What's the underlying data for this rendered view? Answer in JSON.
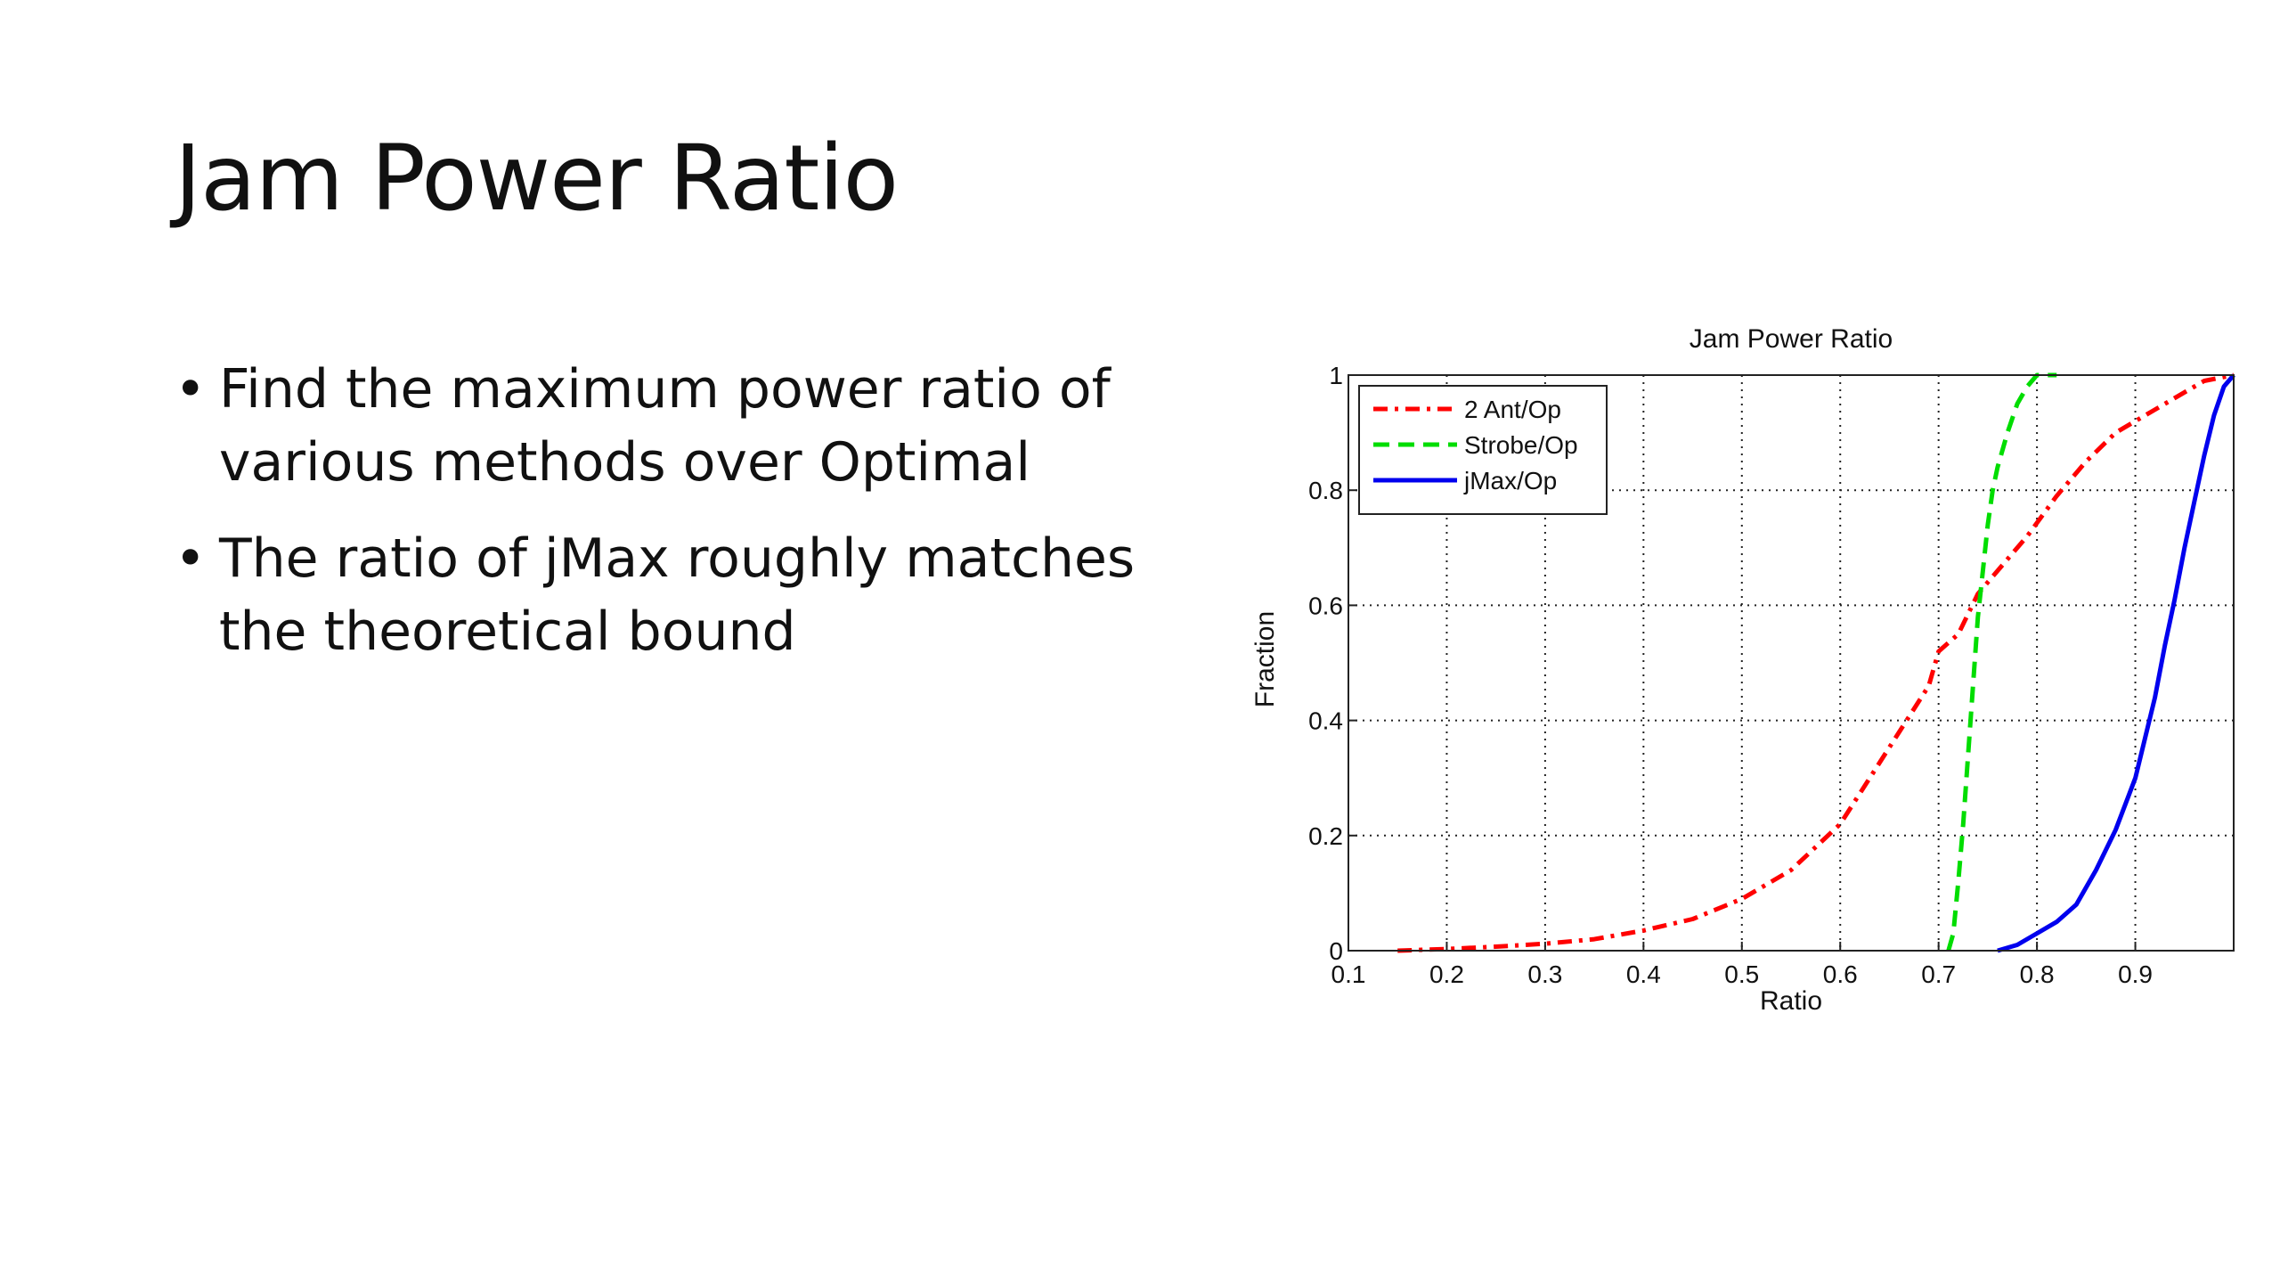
{
  "slide": {
    "title": "Jam Power Ratio",
    "bullets": [
      "Find the maximum power ratio of various methods over Optimal",
      "The ratio of jMax roughly matches the theoretical bound"
    ]
  },
  "chart_data": {
    "type": "line",
    "title": "Jam Power Ratio",
    "xlabel": "Ratio",
    "ylabel": "Fraction",
    "xlim": [
      0.1,
      1.0
    ],
    "ylim": [
      0,
      1
    ],
    "xticks": [
      0.1,
      0.2,
      0.3,
      0.4,
      0.5,
      0.6,
      0.7,
      0.8,
      0.9
    ],
    "xtick_labels": [
      "0.1",
      "0.2",
      "0.3",
      "0.4",
      "0.5",
      "0.6",
      "0.7",
      "0.8",
      "0.9"
    ],
    "yticks": [
      0,
      0.2,
      0.4,
      0.6,
      0.8,
      1
    ],
    "ytick_labels": [
      "0",
      "0.2",
      "0.4",
      "0.6",
      "0.8",
      "1"
    ],
    "grid": true,
    "legend_position": "top-left",
    "series": [
      {
        "name": "2 Ant/Op",
        "color": "#ff0000",
        "style": "dash-dot",
        "x": [
          0.15,
          0.2,
          0.25,
          0.3,
          0.35,
          0.4,
          0.45,
          0.5,
          0.55,
          0.6,
          0.63,
          0.66,
          0.69,
          0.7,
          0.72,
          0.74,
          0.76,
          0.79,
          0.82,
          0.85,
          0.88,
          0.91,
          0.94,
          0.97,
          1.0
        ],
        "y": [
          0.0,
          0.003,
          0.007,
          0.012,
          0.02,
          0.035,
          0.055,
          0.09,
          0.14,
          0.22,
          0.3,
          0.38,
          0.46,
          0.52,
          0.55,
          0.62,
          0.66,
          0.72,
          0.79,
          0.85,
          0.9,
          0.93,
          0.96,
          0.99,
          1.0
        ]
      },
      {
        "name": "Strobe/Op",
        "color": "#00dd00",
        "style": "dashed",
        "x": [
          0.71,
          0.715,
          0.72,
          0.725,
          0.73,
          0.735,
          0.74,
          0.745,
          0.75,
          0.755,
          0.76,
          0.77,
          0.78,
          0.79,
          0.8,
          0.82
        ],
        "y": [
          0.0,
          0.03,
          0.12,
          0.22,
          0.34,
          0.46,
          0.58,
          0.66,
          0.74,
          0.8,
          0.84,
          0.9,
          0.95,
          0.98,
          1.0,
          1.0
        ]
      },
      {
        "name": "jMax/Op",
        "color": "#0000ee",
        "style": "solid",
        "x": [
          0.76,
          0.78,
          0.8,
          0.82,
          0.84,
          0.86,
          0.88,
          0.9,
          0.91,
          0.92,
          0.93,
          0.94,
          0.95,
          0.96,
          0.97,
          0.98,
          0.99,
          1.0
        ],
        "y": [
          0.0,
          0.01,
          0.03,
          0.05,
          0.08,
          0.14,
          0.21,
          0.3,
          0.37,
          0.44,
          0.53,
          0.61,
          0.7,
          0.78,
          0.86,
          0.93,
          0.98,
          1.0
        ]
      }
    ]
  }
}
